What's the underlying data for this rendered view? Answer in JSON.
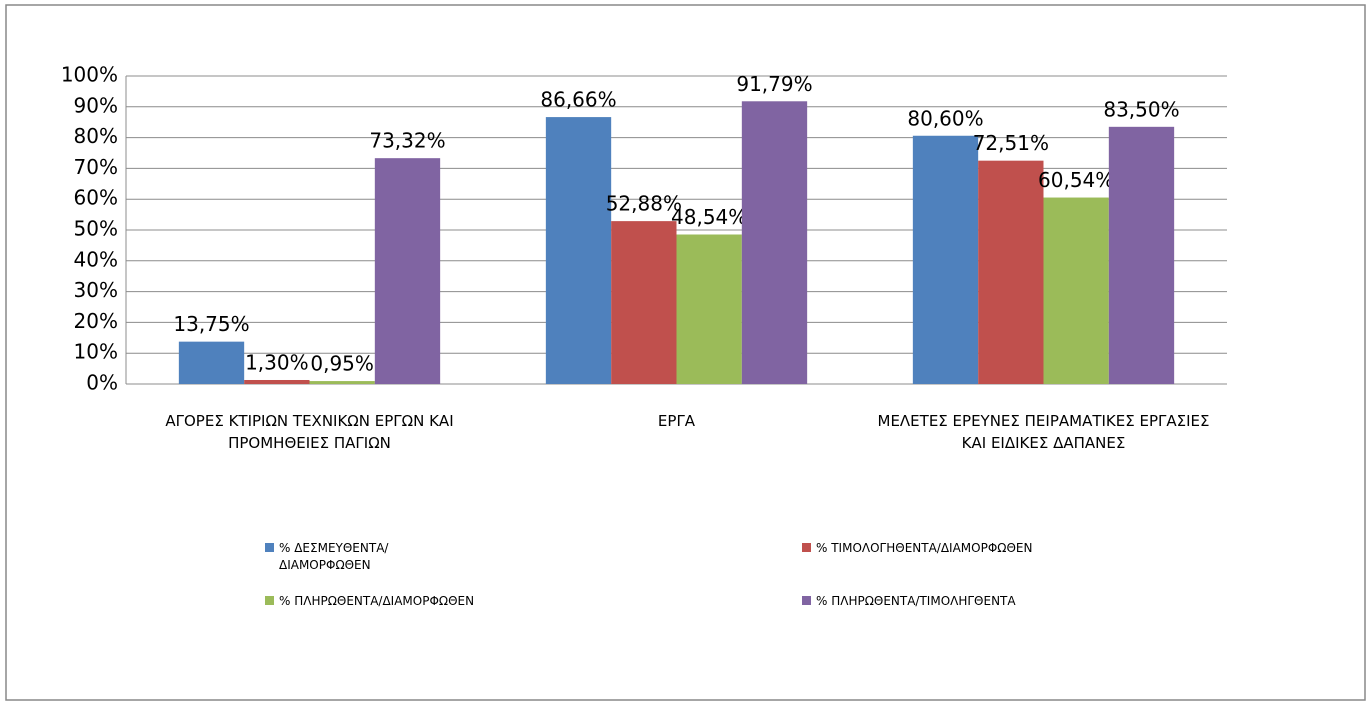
{
  "chart_data": {
    "type": "bar",
    "categories": [
      "ΑΓΟΡΕΣ ΚΤΙΡΙΩΝ ΤΕΧΝΙΚΩΝ ΕΡΓΩΝ ΚΑΙ ΠΡΟΜΗΘΕΙΕΣ ΠΑΓΙΩΝ",
      "ΕΡΓΑ",
      "ΜΕΛΕΤΕΣ ΕΡΕΥΝΕΣ ΠΕΙΡΑΜΑΤΙΚΕΣ ΕΡΓΑΣΙΕΣ ΚΑΙ ΕΙΔΙΚΕΣ ΔΑΠΑΝΕΣ"
    ],
    "series": [
      {
        "name": "% ΔΕΣΜΕΥΘΕΝΤΑ/ ΔΙΑΜΟΡΦΩΘΕΝ",
        "color": "#4f81bd",
        "values": [
          13.75,
          86.66,
          80.6
        ],
        "value_labels": [
          "13,75%",
          "86,66%",
          "80,60%"
        ]
      },
      {
        "name": "% ΤΙΜΟΛΟΓΗΘΕΝΤΑ/ΔΙΑΜΟΡΦΩΘΕΝ",
        "color": "#c0504d",
        "values": [
          1.3,
          52.88,
          72.51
        ],
        "value_labels": [
          "1,30%",
          "52,88%",
          "72,51%"
        ]
      },
      {
        "name": "% ΠΛΗΡΩΘΕΝΤΑ/ΔΙΑΜΟΡΦΩΘΕΝ",
        "color": "#9bbb59",
        "values": [
          0.95,
          48.54,
          60.54
        ],
        "value_labels": [
          "0,95%",
          "48,54%",
          "60,54%"
        ]
      },
      {
        "name": "% ΠΛΗΡΩΘΕΝΤΑ/ΤΙΜΟΛΗΓΘΕΝΤΑ",
        "color": "#8064a2",
        "values": [
          73.32,
          91.79,
          83.5
        ],
        "value_labels": [
          "73,32%",
          "91,79%",
          "83,50%"
        ]
      }
    ],
    "ylim": [
      0,
      100
    ],
    "yticks": [
      {
        "value": 0,
        "label": "0%"
      },
      {
        "value": 10,
        "label": "10%"
      },
      {
        "value": 20,
        "label": "20%"
      },
      {
        "value": 30,
        "label": "30%"
      },
      {
        "value": 40,
        "label": "40%"
      },
      {
        "value": 50,
        "label": "50%"
      },
      {
        "value": 60,
        "label": "60%"
      },
      {
        "value": 70,
        "label": "70%"
      },
      {
        "value": 80,
        "label": "80%"
      },
      {
        "value": 90,
        "label": "90%"
      },
      {
        "value": 100,
        "label": "100%"
      }
    ],
    "grid": true,
    "legend": "bottom"
  }
}
